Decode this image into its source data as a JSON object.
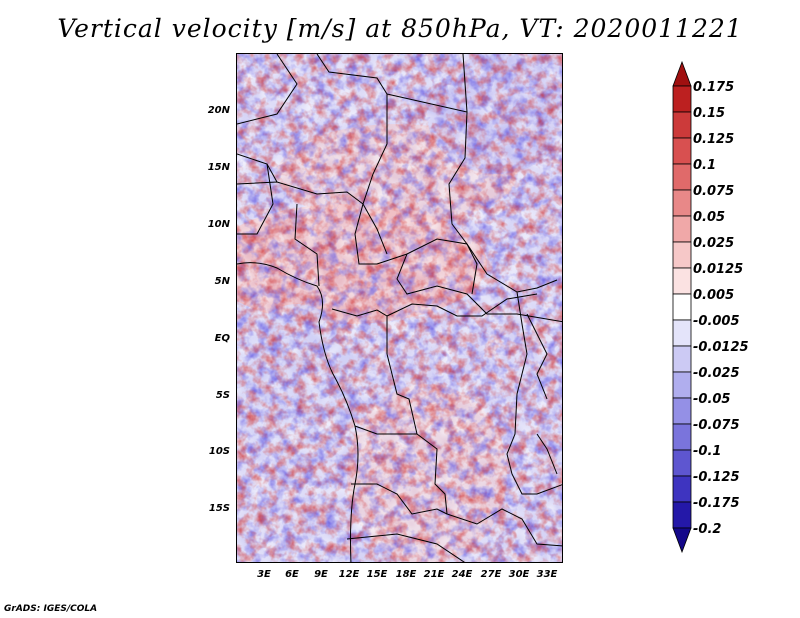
{
  "title": "Vertical velocity [m/s] at 850hPa, VT: 2020011221",
  "credit": "GrADS: IGES/COLA",
  "lat_labels": [
    "20N",
    "15N",
    "10N",
    "5N",
    "EQ",
    "5S",
    "10S",
    "15S"
  ],
  "lon_labels": [
    "3E",
    "6E",
    "9E",
    "12E",
    "15E",
    "18E",
    "21E",
    "24E",
    "27E",
    "30E",
    "33E"
  ],
  "colorbar": {
    "labels": [
      "0.175",
      "0.15",
      "0.125",
      "0.1",
      "0.075",
      "0.05",
      "0.025",
      "0.0125",
      "0.005",
      "-0.005",
      "-0.0125",
      "-0.025",
      "-0.05",
      "-0.075",
      "-0.1",
      "-0.125",
      "-0.175",
      "-0.2"
    ],
    "colors": [
      "#a01010",
      "#bc2020",
      "#cc3a3a",
      "#d85050",
      "#e06a6a",
      "#e88888",
      "#f0a8a8",
      "#f6c8c8",
      "#fbe2e2",
      "#ffffff",
      "#e4e4fa",
      "#cccaf4",
      "#b0aeee",
      "#9490e6",
      "#7a74dc",
      "#5e56d0",
      "#3e34c0",
      "#2418a8",
      "#14088a"
    ]
  }
}
